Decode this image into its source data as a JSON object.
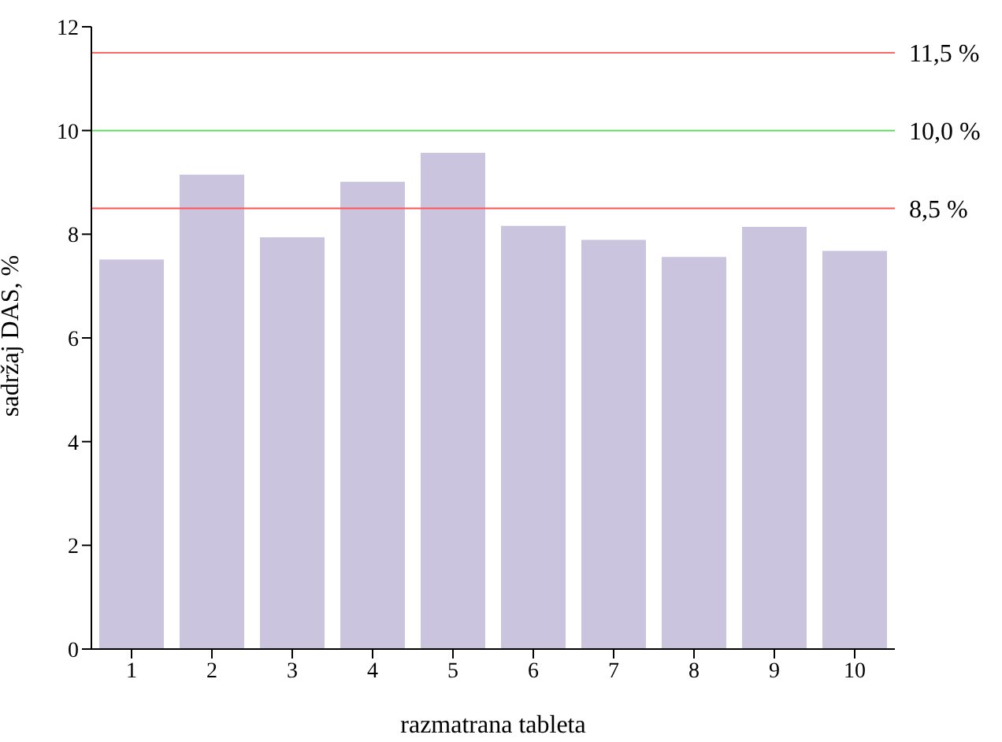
{
  "chart_data": {
    "type": "bar",
    "xlabel": "razmatrana tableta",
    "ylabel": "sadržaj DAS, %",
    "categories": [
      "1",
      "2",
      "3",
      "4",
      "5",
      "6",
      "7",
      "8",
      "9",
      "10"
    ],
    "values": [
      7.51,
      9.15,
      7.94,
      9.01,
      9.57,
      8.16,
      7.89,
      7.56,
      8.14,
      7.68
    ],
    "color": "#cbc4de",
    "ylim": [
      0,
      12
    ],
    "yticks": [
      0,
      2,
      4,
      6,
      8,
      10,
      12
    ],
    "grid": false,
    "legend": false,
    "ref_lines": [
      {
        "axis": "y",
        "value": 11.5,
        "label": "11,5 %",
        "color": "#ff6666"
      },
      {
        "axis": "y",
        "value": 10,
        "label": "10,0 %",
        "color": "#66dd66"
      },
      {
        "axis": "y",
        "value": 8.5,
        "label": "8,5 %",
        "color": "#ff5555"
      }
    ]
  }
}
